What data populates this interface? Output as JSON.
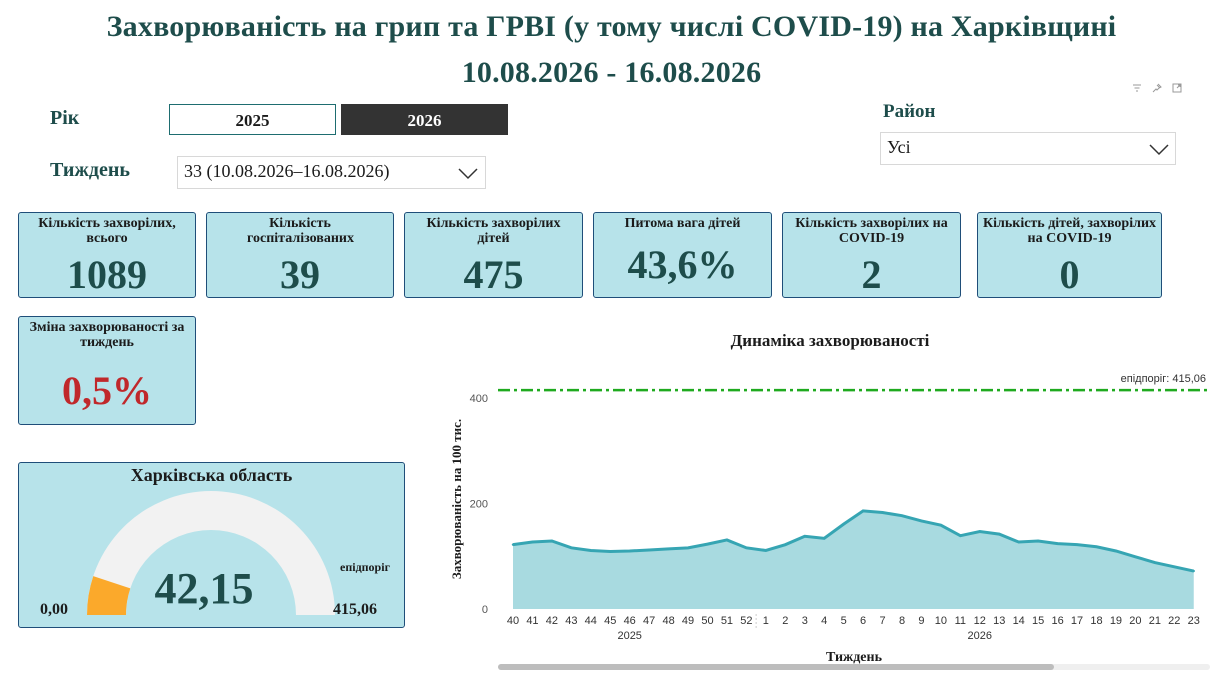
{
  "header": {
    "title_line1": "Захворюваність на грип та ГРВІ (у тому числі COVID-19) на Харківщині",
    "title_line2": "10.08.2026 - 16.08.2026"
  },
  "filters": {
    "year_label": "Рік",
    "years": [
      "2025",
      "2026"
    ],
    "selected_year": "2026",
    "week_label": "Тиждень",
    "week_value": "33 (10.08.2026–16.08.2026)",
    "district_label": "Район",
    "district_value": "Усі"
  },
  "icons": {
    "filter": "filter-icon",
    "pin": "pin-icon",
    "focus": "focus-mode-icon",
    "dropdown": "chevron-down-icon"
  },
  "cards": [
    {
      "title": "Кількість захворілих, всього",
      "value": "1089"
    },
    {
      "title": "Кількість госпіталізованих",
      "value": "39"
    },
    {
      "title": "Кількість захворілих дітей",
      "value": "475"
    },
    {
      "title": "Питома вага дітей",
      "value": "43,6%"
    },
    {
      "title": "Кількість захворілих на COVID-19",
      "value": "2"
    },
    {
      "title": "Кількість дітей, захворілих на COVID-19",
      "value": "0"
    }
  ],
  "change_card": {
    "title": "Зміна захворюваності за тиждень",
    "value": "0,5%",
    "color": "#c0282b"
  },
  "gauge": {
    "title": "Харківська область",
    "value": 42.15,
    "value_label": "42,15",
    "min": 0,
    "max": 415.06,
    "min_label": "0,00",
    "max_label": "415,06",
    "target_label": "епідпоріг",
    "fill_color": "#fba92b",
    "track_color": "#f2f2f2"
  },
  "chart_data": {
    "type": "area",
    "title": "Динаміка захворюваності",
    "xlabel": "Тиждень",
    "ylabel": "Захворюваність на 100 тис.",
    "ylim": [
      0,
      440
    ],
    "yticks": [
      0,
      200,
      400
    ],
    "categories": [
      "40",
      "41",
      "42",
      "43",
      "44",
      "45",
      "46",
      "47",
      "48",
      "49",
      "50",
      "51",
      "52",
      "1",
      "2",
      "3",
      "4",
      "5",
      "6",
      "7",
      "8",
      "9",
      "10",
      "11",
      "12",
      "13",
      "14",
      "15",
      "16",
      "17",
      "18",
      "19",
      "20",
      "21",
      "22",
      "23"
    ],
    "year_groups": [
      {
        "label": "2025",
        "from": 0,
        "to": 12
      },
      {
        "label": "2026",
        "from": 13,
        "to": 35
      }
    ],
    "series": [
      {
        "values": [
          122,
          127,
          129,
          116,
          111,
          109,
          110,
          112,
          114,
          116,
          123,
          131,
          116,
          111,
          122,
          138,
          134,
          161,
          186,
          183,
          177,
          167,
          159,
          139,
          147,
          142,
          127,
          129,
          124,
          122,
          118,
          110,
          99,
          88,
          80,
          72
        ],
        "color": "#36a5b3"
      }
    ],
    "threshold": {
      "value": 415.06,
      "label": "епідпоріг: 415,06",
      "color": "#1faa1f"
    },
    "grid": false
  }
}
